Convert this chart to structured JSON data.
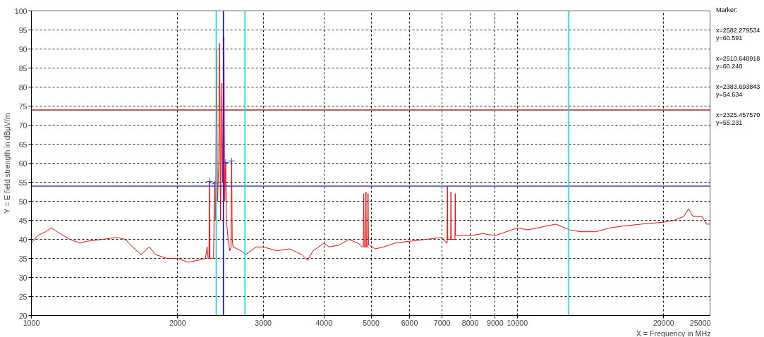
{
  "chart_data": {
    "type": "line",
    "xlabel": "X = Frequency in MHz",
    "ylabel": "Y = E field strength in dBµV/m",
    "log": "x",
    "xlim": [
      1000,
      25000
    ],
    "ylim": [
      20,
      100
    ],
    "xticks": [
      1000,
      2000,
      3000,
      4000,
      5000,
      6000,
      7000,
      8000,
      9000,
      10000,
      20000,
      25000
    ],
    "yticks": [
      20,
      25,
      30,
      35,
      40,
      45,
      50,
      55,
      60,
      65,
      70,
      75,
      80,
      85,
      90,
      95,
      100
    ],
    "grid": true,
    "marker": "none",
    "line_style": "solid",
    "series": [
      {
        "color": "#ff0000",
        "x": [
          1000,
          1030,
          1070,
          1100,
          1130,
          1200,
          1260,
          1300,
          1400,
          1500,
          1560,
          1600,
          1680,
          1750,
          1800,
          1900,
          2000,
          2100,
          2200,
          2280,
          2300,
          2310,
          2320,
          2325,
          2330,
          2370,
          2384,
          2390,
          2395,
          2405,
          2415,
          2430,
          2440,
          2450,
          2465,
          2475,
          2490,
          2500,
          2511,
          2520,
          2540,
          2560,
          2575,
          2582,
          2590,
          2600,
          2700,
          2760,
          2900,
          3000,
          3200,
          3400,
          3600,
          3700,
          3800,
          4000,
          4100,
          4300,
          4500,
          4700,
          4800,
          4820,
          4830,
          4840,
          4870,
          4880,
          4890,
          4920,
          4930,
          4940,
          4960,
          5100,
          5300,
          5600,
          6000,
          6500,
          7000,
          7150,
          7170,
          7180,
          7190,
          7290,
          7300,
          7310,
          7440,
          7450,
          7460,
          7500,
          8000,
          8500,
          9000,
          9500,
          10000,
          10500,
          11000,
          12000,
          12800,
          13500,
          14500,
          15500,
          16500,
          18000,
          20000,
          21000,
          22000,
          22500,
          23000,
          24000,
          24500,
          25000
        ],
        "values": [
          39,
          41,
          42,
          43,
          42,
          40,
          39,
          39.5,
          40,
          40.5,
          40,
          38.5,
          36,
          38,
          36,
          35,
          35,
          34,
          34.5,
          35,
          38,
          35,
          35,
          55.2,
          35,
          35,
          54.6,
          45,
          50,
          90,
          50,
          60,
          91.5,
          45,
          81,
          55,
          93,
          50,
          60.2,
          45,
          40,
          37,
          38,
          60.6,
          40,
          38,
          37,
          36,
          38,
          38,
          37,
          37.5,
          36,
          34.5,
          37,
          39,
          38,
          38.5,
          40,
          39,
          38,
          38,
          52,
          38,
          38,
          52.5,
          38,
          38,
          52,
          38.5,
          38.5,
          37.5,
          38,
          39,
          39.5,
          40,
          40.5,
          39,
          39,
          54,
          40,
          40,
          52.5,
          40,
          40,
          52,
          41,
          41,
          41,
          41.5,
          41,
          42,
          43,
          42.5,
          43,
          44,
          42.5,
          42,
          42,
          43,
          43.5,
          44,
          44.5,
          45,
          46,
          48,
          46,
          46,
          44,
          44
        ]
      },
      {
        "type": "scatter",
        "color": "#4040c0",
        "marker": "cross",
        "x": [
          2582,
          2511,
          2384,
          2325
        ],
        "values": [
          60.6,
          60.2,
          54.6,
          55.2
        ]
      }
    ],
    "ref_lines": [
      {
        "axis": "y",
        "value": 74,
        "color": "#a52a2a"
      },
      {
        "axis": "y",
        "value": 54,
        "color": "#4040c0"
      },
      {
        "axis": "x",
        "value": 2400,
        "color": "#00e0e0"
      },
      {
        "axis": "x",
        "value": 2483.5,
        "color": "#0000ff"
      },
      {
        "axis": "x",
        "value": 2750,
        "color": "#00e0e0"
      },
      {
        "axis": "x",
        "value": 12750,
        "color": "#00e0e0"
      }
    ],
    "annotations": [
      "Marker:",
      "x=2582.279534\ny=60.591",
      "x=2510.648918\ny=60.240",
      "x=2383.693843\ny=54.634",
      "x=2325.457570\ny=55.231"
    ]
  }
}
